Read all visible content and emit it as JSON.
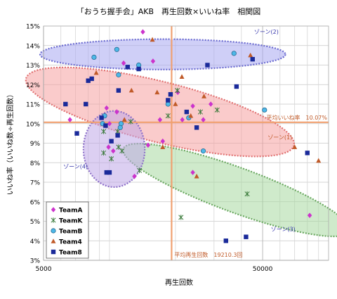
{
  "colors": {
    "teama": "#cc33cc",
    "teamk": "#3a7a3a",
    "teamb": "#4db8e8",
    "team4": "#c05a28",
    "team8": "#1a2a9a",
    "avg_line": "#f0a070",
    "zone1_fill": "#f5a0a0",
    "zone2_fill": "#a8a8f0",
    "zone3_fill": "#a8d8a0",
    "zone4_fill": "#c0a8e8"
  },
  "chart_data": {
    "type": "scatter",
    "title": "「おうち握手会」AKB　再生回数×いいね率　相関図",
    "xlabel": "再生回数",
    "ylabel": "いいね率（いいね数÷再生回数）",
    "xscale": "log",
    "xlim": [
      5000,
      100000
    ],
    "ylim": [
      3,
      15
    ],
    "x_ticks": [
      {
        "value": 5000,
        "label": "5000"
      },
      {
        "value": 50000,
        "label": "50000"
      }
    ],
    "y_ticks": [
      {
        "value": 3,
        "label": "3%"
      },
      {
        "value": 4,
        "label": "4%"
      },
      {
        "value": 5,
        "label": "5%"
      },
      {
        "value": 6,
        "label": "6%"
      },
      {
        "value": 7,
        "label": "7%"
      },
      {
        "value": 8,
        "label": "8%"
      },
      {
        "value": 9,
        "label": "9%"
      },
      {
        "value": 10,
        "label": "10%"
      },
      {
        "value": 11,
        "label": "11%"
      },
      {
        "value": 12,
        "label": "12%"
      },
      {
        "value": 13,
        "label": "13%"
      },
      {
        "value": 14,
        "label": "14%"
      },
      {
        "value": 15,
        "label": "15%"
      }
    ],
    "grid": true,
    "legend_position": "bottom-left",
    "avg_x": {
      "value": 19210.3,
      "label": "平均再生回数　19210.3回"
    },
    "avg_y": {
      "value": 10.07,
      "label": "平均いいね率　10.07%"
    },
    "zones": [
      {
        "label": "ゾーン(1)",
        "center": [
          17000,
          10.6
        ],
        "rx": 0.63,
        "ry": 1.55,
        "angle_deg": 14,
        "color": "zone1_fill",
        "label_pos": [
          60000,
          9.2
        ]
      },
      {
        "label": "ゾーン(2)",
        "center": [
          17500,
          13.55
        ],
        "rx": 0.56,
        "ry": 0.78,
        "angle_deg": 0,
        "color": "zone2_fill",
        "label_pos": [
          52000,
          14.6
        ]
      },
      {
        "label": "ゾーン(3)",
        "center": [
          38000,
          6.6
        ],
        "rx": 0.55,
        "ry": 1.15,
        "angle_deg": 20,
        "color": "zone3_fill",
        "label_pos": [
          62000,
          4.5
        ]
      },
      {
        "label": "ゾーン(4)",
        "center": [
          10500,
          8.7
        ],
        "rx": 0.14,
        "ry": 1.95,
        "angle_deg": 0,
        "color": "zone4_fill",
        "label_pos": [
          7000,
          7.7
        ]
      }
    ],
    "series": [
      {
        "name": "TeamA",
        "marker": "diamond",
        "color": "teama",
        "points": [
          [
            14200,
            14.7
          ],
          [
            15800,
            13.2
          ],
          [
            11600,
            13.1
          ],
          [
            20500,
            11.6
          ],
          [
            24000,
            10.9
          ],
          [
            9700,
            10.8
          ],
          [
            10800,
            10.6
          ],
          [
            10000,
            10.0
          ],
          [
            17500,
            9.1
          ],
          [
            15000,
            8.9
          ],
          [
            9900,
            8.8
          ],
          [
            10400,
            8.6
          ],
          [
            6600,
            10.2
          ],
          [
            26800,
            10.2
          ],
          [
            13000,
            7.3
          ],
          [
            24000,
            7.5
          ],
          [
            21500,
            10.2
          ],
          [
            17000,
            10.2
          ],
          [
            82000,
            5.3
          ],
          [
            29000,
            11.0
          ]
        ]
      },
      {
        "name": "TeamK",
        "marker": "asterisk",
        "color": "teamk",
        "points": [
          [
            20400,
            11.7
          ],
          [
            9400,
            9.6
          ],
          [
            12500,
            10.1
          ],
          [
            9400,
            8.5
          ],
          [
            10200,
            8.2
          ],
          [
            11000,
            8.8
          ],
          [
            11400,
            8.6
          ],
          [
            31000,
            10.7
          ],
          [
            13700,
            7.6
          ],
          [
            21200,
            5.2
          ],
          [
            42500,
            6.4
          ],
          [
            26000,
            10.6
          ],
          [
            18500,
            10.4
          ],
          [
            10900,
            9.6
          ]
        ]
      },
      {
        "name": "TeamB",
        "marker": "circle",
        "color": "teamb",
        "points": [
          [
            8500,
            13.4
          ],
          [
            10800,
            13.8
          ],
          [
            13600,
            13.0
          ],
          [
            9500,
            10.4
          ],
          [
            11300,
            10.0
          ],
          [
            11200,
            9.8
          ],
          [
            51000,
            10.7
          ],
          [
            26800,
            8.6
          ],
          [
            37000,
            13.6
          ],
          [
            11000,
            12.5
          ],
          [
            23000,
            10.3
          ],
          [
            9300,
            10.0
          ],
          [
            18500,
            11.0
          ]
        ]
      },
      {
        "name": "Team4",
        "marker": "triangle",
        "color": "team4",
        "points": [
          [
            15700,
            14.3
          ],
          [
            8700,
            12.6
          ],
          [
            21400,
            12.4
          ],
          [
            12600,
            11.7
          ],
          [
            16500,
            11.6
          ],
          [
            27000,
            11.4
          ],
          [
            20000,
            11.0
          ],
          [
            23500,
            10.4
          ],
          [
            25000,
            7.3
          ],
          [
            17500,
            8.8
          ],
          [
            70000,
            8.8
          ],
          [
            90000,
            8.1
          ],
          [
            44000,
            13.5
          ],
          [
            11700,
            10.2
          ]
        ]
      },
      {
        "name": "Team8",
        "marker": "square",
        "color": "team8",
        "points": [
          [
            8000,
            12.2
          ],
          [
            8300,
            12.3
          ],
          [
            6300,
            11.0
          ],
          [
            7800,
            11.0
          ],
          [
            7100,
            9.5
          ],
          [
            11000,
            11.7
          ],
          [
            13600,
            12.8
          ],
          [
            19000,
            11.5
          ],
          [
            22500,
            10.6
          ],
          [
            25000,
            9.8
          ],
          [
            38000,
            11.9
          ],
          [
            28000,
            13.0
          ],
          [
            45000,
            13.3
          ],
          [
            42000,
            4.2
          ],
          [
            34000,
            4.0
          ],
          [
            10000,
            7.5
          ],
          [
            10900,
            9.4
          ],
          [
            9700,
            7.5
          ],
          [
            9600,
            9.9
          ],
          [
            10200,
            9.1
          ],
          [
            80000,
            8.5
          ],
          [
            12100,
            12.9
          ],
          [
            9200,
            10.3
          ],
          [
            18500,
            11.2
          ]
        ]
      }
    ]
  }
}
